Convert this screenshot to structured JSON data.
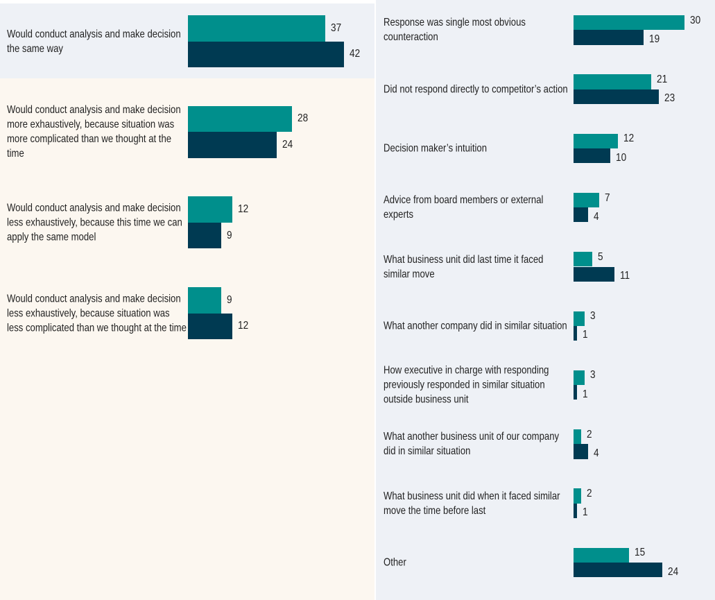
{
  "chart_data": [
    {
      "type": "bar",
      "orientation": "horizontal",
      "categories": [
        "Would conduct analysis and make decision the same way",
        "Would conduct analysis and make decision more exhaustively, because situation was more complicated than we thought at the time",
        "Would conduct analysis and make decision less exhaustively, because this time we can apply the same model",
        "Would conduct analysis and make decision less exhaustively, because situation was less complicated than we thought at the time"
      ],
      "series": [
        {
          "color": "#008f8c",
          "values": [
            37,
            28,
            12,
            9
          ]
        },
        {
          "color": "#003a52",
          "values": [
            42,
            24,
            9,
            12
          ]
        }
      ]
    },
    {
      "type": "bar",
      "orientation": "horizontal",
      "categories": [
        "Response was single most obvious counteraction",
        "Did not respond directly to competitor’s action",
        "Decision maker’s intuition",
        "Advice from board members or external experts",
        "What business unit did last time it faced similar move",
        "What another company did in similar situation",
        "How executive in charge with responding previously responded in similar situation outside business unit",
        "What another business unit of our company did in similar situation",
        "What business unit did when it faced similar move the time before last",
        "Other"
      ],
      "series": [
        {
          "color": "#008f8c",
          "values": [
            30,
            21,
            12,
            7,
            5,
            3,
            3,
            2,
            2,
            15
          ]
        },
        {
          "color": "#003a52",
          "values": [
            19,
            23,
            10,
            4,
            11,
            1,
            1,
            4,
            1,
            24
          ]
        }
      ]
    }
  ]
}
